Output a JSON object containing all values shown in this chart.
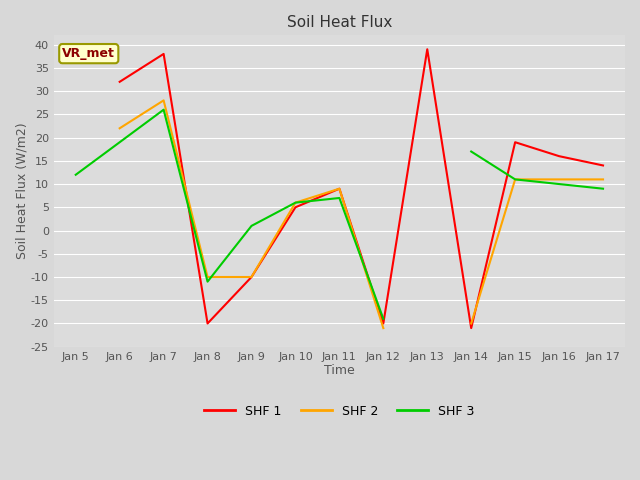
{
  "title": "Soil Heat Flux",
  "xlabel": "Time",
  "ylabel": "Soil Heat Flux (W/m2)",
  "ylim": [
    -25,
    42
  ],
  "yticks": [
    -25,
    -20,
    -15,
    -10,
    -5,
    0,
    5,
    10,
    15,
    20,
    25,
    30,
    35,
    40
  ],
  "x_labels": [
    "Jan 5",
    "Jan 6",
    "Jan 7",
    "Jan 8",
    "Jan 9",
    "Jan 10",
    "Jan 11",
    "Jan 12",
    "Jan 13",
    "Jan 14",
    "Jan 15",
    "Jan 16",
    "Jan 17"
  ],
  "x_values": [
    0,
    1,
    2,
    3,
    4,
    5,
    6,
    7,
    8,
    9,
    10,
    11,
    12
  ],
  "shf1": [
    null,
    32,
    38,
    -20,
    -10,
    5,
    9,
    -20,
    39,
    -21,
    19,
    16,
    14
  ],
  "shf2": [
    null,
    22,
    28,
    -10,
    -10,
    6,
    9,
    -21,
    null,
    -20,
    11,
    11,
    11
  ],
  "shf3": [
    12,
    19,
    26,
    -11,
    1,
    6,
    7,
    -19,
    null,
    17,
    11,
    10,
    9
  ],
  "color_shf1": "#ff0000",
  "color_shf2": "#ffa500",
  "color_shf3": "#00cc00",
  "legend_labels": [
    "SHF 1",
    "SHF 2",
    "SHF 3"
  ],
  "vr_met_label": "VR_met",
  "background_color": "#dcdcdc",
  "grid_color": "#ffffff",
  "fig_background": "#d8d8d8",
  "linewidth": 1.5,
  "title_fontsize": 11,
  "axis_label_fontsize": 9,
  "tick_fontsize": 8,
  "legend_fontsize": 9
}
